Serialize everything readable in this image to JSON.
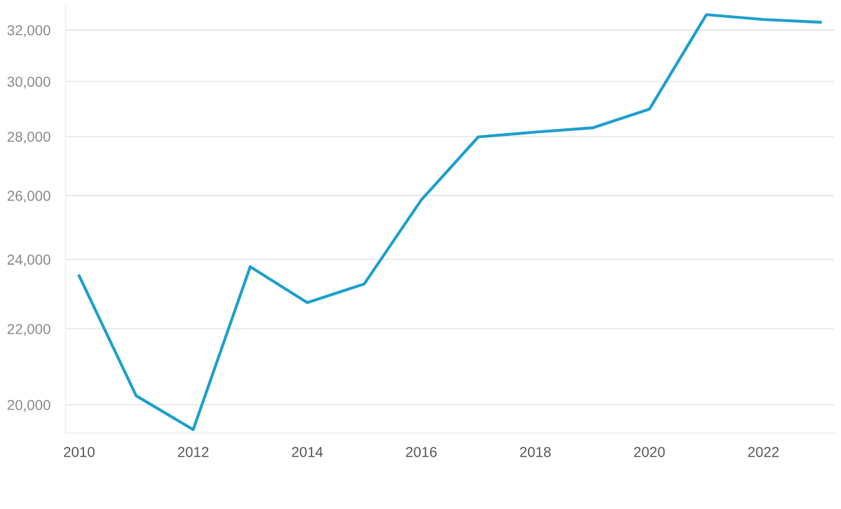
{
  "chart_data": {
    "type": "line",
    "x": [
      2010,
      2011,
      2012,
      2013,
      2014,
      2015,
      2016,
      2017,
      2018,
      2019,
      2020,
      2021,
      2022,
      2023
    ],
    "series": [
      {
        "color": "#1d9fcc",
        "values": [
          23510,
          20225,
          19386,
          23780,
          22734,
          23272,
          25857,
          27986,
          28156,
          28304,
          28976,
          32624,
          32426,
          32314
        ]
      }
    ],
    "log": "y",
    "xlim": [
      2009.76,
      2023.24
    ],
    "ylim": [
      19300,
      33000
    ],
    "xticks": [
      2010,
      2012,
      2014,
      2016,
      2018,
      2020,
      2022
    ],
    "yticks": [
      {
        "value": 20000,
        "label": "20,000"
      },
      {
        "value": 22000,
        "label": "22,000"
      },
      {
        "value": 24000,
        "label": "24,000"
      },
      {
        "value": 26000,
        "label": "26,000"
      },
      {
        "value": 28000,
        "label": "28,000"
      },
      {
        "value": 30000,
        "label": "30,000"
      },
      {
        "value": 32000,
        "label": "32,000"
      }
    ],
    "grid": "y",
    "marker": "none",
    "line_style": "solid"
  }
}
